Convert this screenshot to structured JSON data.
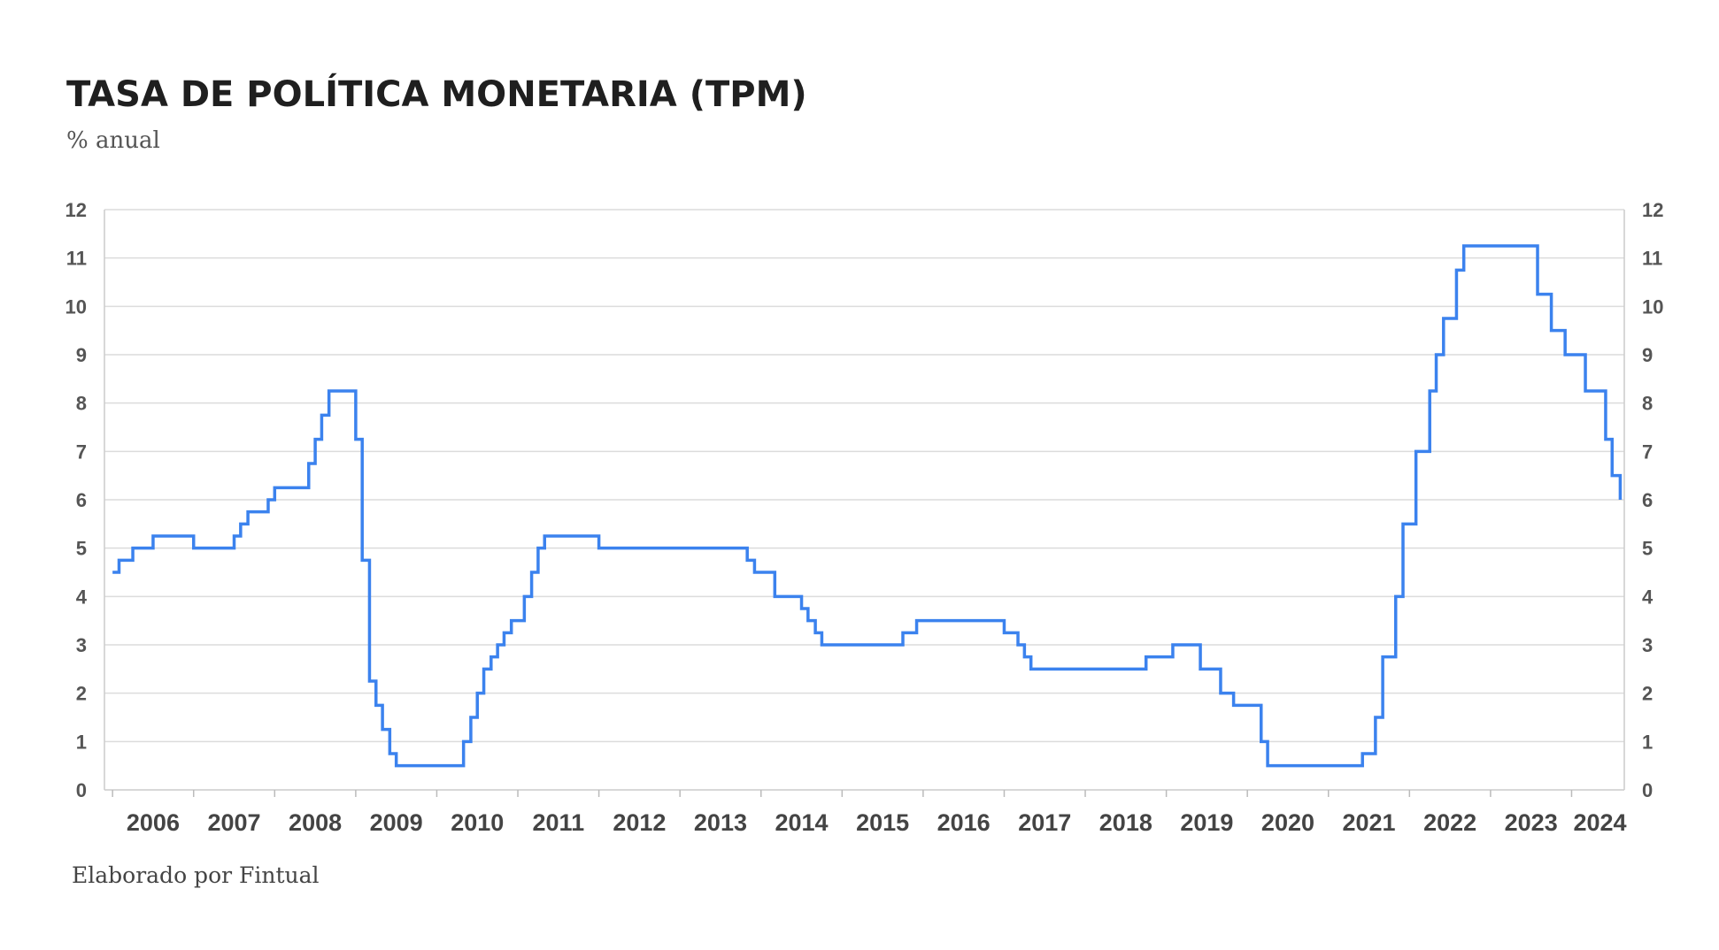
{
  "colors": {
    "line": "#3b82ee",
    "grid": "#dcdcdc",
    "title": "#1f1f1f"
  },
  "chart_data": {
    "type": "line",
    "step": true,
    "title": "TASA DE POLÍTICA MONETARIA (TPM)",
    "subtitle": "% anual",
    "source": "Elaborado por Fintual",
    "ylim": [
      0,
      12
    ],
    "yticks": [
      0,
      1,
      2,
      3,
      4,
      5,
      6,
      7,
      8,
      9,
      10,
      11,
      12
    ],
    "y_axis_both_sides": true,
    "grid": true,
    "xlim": [
      2005.9,
      2024.65
    ],
    "x_tick_labels": [
      "2006",
      "2007",
      "2008",
      "2009",
      "2010",
      "2011",
      "2012",
      "2013",
      "2014",
      "2015",
      "2016",
      "2017",
      "2018",
      "2019",
      "2020",
      "2021",
      "2022",
      "2023",
      "2024"
    ],
    "series": [
      {
        "name": "",
        "x": [
          2006.0,
          2006.08,
          2006.25,
          2006.5,
          2007.0,
          2007.5,
          2007.58,
          2007.67,
          2007.92,
          2008.0,
          2008.42,
          2008.5,
          2008.58,
          2008.67,
          2009.0,
          2009.08,
          2009.17,
          2009.25,
          2009.33,
          2009.42,
          2009.5,
          2010.33,
          2010.42,
          2010.5,
          2010.58,
          2010.67,
          2010.75,
          2010.83,
          2010.92,
          2011.08,
          2011.17,
          2011.25,
          2011.33,
          2011.42,
          2012.0,
          2013.83,
          2013.92,
          2014.17,
          2014.5,
          2014.58,
          2014.67,
          2014.75,
          2015.75,
          2015.92,
          2017.0,
          2017.17,
          2017.25,
          2017.33,
          2018.75,
          2019.08,
          2019.42,
          2019.67,
          2019.83,
          2020.17,
          2020.25,
          2021.42,
          2021.58,
          2021.67,
          2021.83,
          2021.92,
          2022.08,
          2022.25,
          2022.33,
          2022.42,
          2022.58,
          2022.67,
          2022.83,
          2023.58,
          2023.75,
          2023.92,
          2024.17,
          2024.42
        ],
        "y": [
          4.5,
          4.75,
          5.0,
          5.25,
          5.0,
          5.25,
          5.5,
          5.75,
          6.0,
          6.25,
          6.75,
          7.25,
          7.75,
          8.25,
          7.25,
          4.75,
          2.25,
          1.75,
          1.25,
          0.75,
          0.5,
          1.0,
          1.5,
          2.0,
          2.5,
          2.75,
          3.0,
          3.25,
          3.5,
          4.0,
          4.5,
          5.0,
          5.25,
          5.25,
          5.0,
          4.75,
          4.5,
          4.0,
          3.75,
          3.5,
          3.25,
          3.0,
          3.25,
          3.5,
          3.25,
          3.0,
          2.75,
          2.5,
          2.75,
          3.0,
          2.5,
          2.0,
          1.75,
          1.0,
          0.5,
          0.75,
          1.5,
          2.75,
          4.0,
          5.5,
          7.0,
          8.25,
          9.0,
          9.75,
          10.75,
          11.25,
          11.25,
          10.25,
          9.5,
          9.0,
          8.25,
          7.25
        ],
        "end": [
          2024.5,
          6.5,
          2024.6,
          6.0
        ]
      }
    ]
  }
}
